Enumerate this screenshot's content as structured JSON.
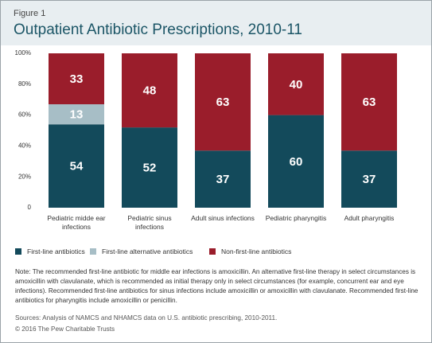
{
  "header": {
    "figure": "Figure 1",
    "title": "Outpatient Antibiotic Prescriptions, 2010-11"
  },
  "chart_data": {
    "type": "stacked-bar",
    "categories": [
      "Pediatric midde ear infections",
      "Pediatric sinus infections",
      "Adult sinus infections",
      "Pediatric pharyngitis",
      "Adult pharyngitis"
    ],
    "series": [
      {
        "name": "First-line antibiotics",
        "color": "#134a5b",
        "values": [
          54,
          52,
          37,
          60,
          37
        ]
      },
      {
        "name": "First-line alternative antibiotics",
        "color": "#a7bec6",
        "values": [
          13,
          null,
          null,
          null,
          null
        ]
      },
      {
        "name": "Non-first-line antibiotics",
        "color": "#9a1d2b",
        "values": [
          33,
          48,
          63,
          40,
          63
        ]
      }
    ],
    "ylim": [
      0,
      100
    ],
    "yticks": [
      0,
      {
        "value": 20,
        "label": "20%"
      },
      {
        "value": 40,
        "label": "40%"
      },
      {
        "value": 60,
        "label": "60%"
      },
      {
        "value": 80,
        "label": "80%"
      },
      {
        "value": 100,
        "label": "100%"
      }
    ],
    "grid": false
  },
  "note": "Note: The recommended first-line antibiotic for middle ear infections is amoxicillin. An alternative first-line therapy in select circumstances is amoxicillin with clavulanate, which is recommended as initial therapy only in select circumstances (for example, concurrent ear and eye infections). Recommended first-line antibiotics for sinus infections include amoxicillin or amoxicillin with clavulanate. Recommended first-line antibiotics for pharyngitis include amoxicillin or penicillin.",
  "sources": "Sources: Analysis of NAMCS and NHAMCS data on U.S. antibiotic prescribing, 2010-2011.",
  "copyright": "© 2016 The Pew Charitable Trusts"
}
